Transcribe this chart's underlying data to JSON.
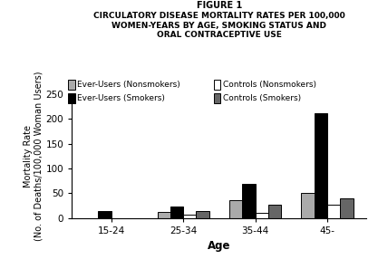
{
  "title_line1": "FIGURE 1",
  "title_line2": "CIRCULATORY DISEASE MORTALITY RATES PER 100,000\nWOMEN-YEARS BY AGE, SMOKING STATUS AND\nORAL CONTRACEPTIVE USE",
  "xlabel": "Age",
  "ylabel": "Mortality Rate\n(No. of Deaths/100,000 Woman Users)",
  "age_groups": [
    "15-24",
    "25-34",
    "35-44",
    "45-"
  ],
  "series": {
    "Ever-Users (Nonsmokers)": [
      0,
      12,
      35,
      51
    ],
    "Ever-Users (Smokers)": [
      14,
      23,
      68,
      212
    ],
    "Controls (Nonsmokers)": [
      0,
      7,
      10,
      27
    ],
    "Controls (Smokers)": [
      0,
      14,
      27,
      40
    ]
  },
  "colors": {
    "Ever-Users (Nonsmokers)": "#aaaaaa",
    "Ever-Users (Smokers)": "#000000",
    "Controls (Nonsmokers)": "#ffffff",
    "Controls (Smokers)": "#666666"
  },
  "edgecolors": {
    "Ever-Users (Nonsmokers)": "#000000",
    "Ever-Users (Smokers)": "#000000",
    "Controls (Nonsmokers)": "#000000",
    "Controls (Smokers)": "#000000"
  },
  "ylim": [
    0,
    250
  ],
  "yticks": [
    0,
    50,
    100,
    150,
    200,
    250
  ],
  "bar_width": 0.18
}
